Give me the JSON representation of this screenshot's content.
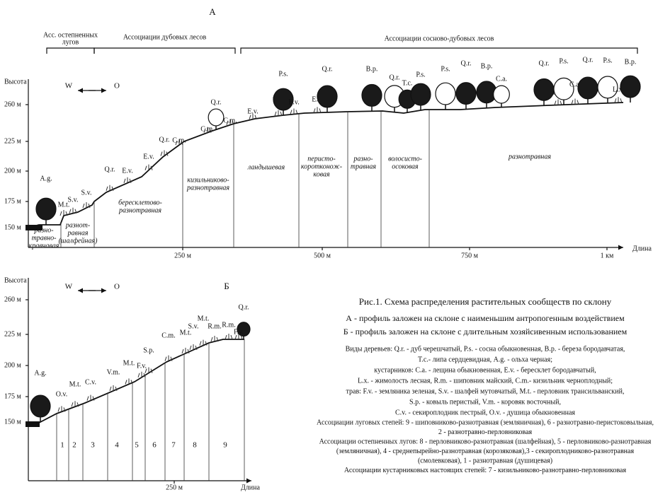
{
  "panel_a": {
    "label": "А",
    "y_axis_title": "Высота",
    "x_axis_title": "Длина",
    "yticks": [
      "150 м",
      "175 м",
      "200 м",
      "225 м",
      "260 м"
    ],
    "xticks": [
      "250 м",
      "500 м",
      "750 м",
      "1 км"
    ],
    "west": "W",
    "east": "O",
    "brackets": [
      [
        "Асс. остепненных",
        "лугов"
      ],
      [
        "Ассоциации дубовых лесов"
      ],
      [
        "Ассоциации сосново-дубовых лесов"
      ]
    ],
    "zones": [
      [
        "разно-",
        "травно-",
        "кравчавая"
      ],
      [
        "разнот-",
        "равная",
        "(шалфейная)"
      ],
      [
        "бересклетово-",
        "разнотравная"
      ],
      [
        "кизильниково-",
        "разнотравная"
      ],
      [
        "ландышевая"
      ],
      [
        "перисто-",
        "коротконож-",
        "ковая"
      ],
      [
        "разно-",
        "травная"
      ],
      [
        "волосисто-",
        "осоковая"
      ],
      [
        "разнотравная"
      ]
    ],
    "plant_labels": [
      "A.g.",
      "M.t.",
      "S.v.",
      "S.v.",
      "Q.r.",
      "E.v.",
      "E.v.",
      "Q.r.",
      "C.m.",
      "C.m.",
      "Q.r.",
      "C.m.",
      "E.v.",
      "C.a.",
      "P.s.",
      "E.v.",
      "E.v.",
      "Q.r.",
      "B.p.",
      "Q.r.",
      "T.c.",
      "P.s.",
      "P.s.",
      "Q.r.",
      "B.p.",
      "C.a.",
      "Q.r.",
      "E.v.",
      "P.s.",
      "C.a.",
      "Q.r.",
      "P.s.",
      "L.x.",
      "B.p."
    ]
  },
  "panel_b": {
    "label": "Б",
    "y_axis_title": "Высота",
    "x_axis_title": "Длина",
    "yticks": [
      "150 м",
      "175 м",
      "200 м",
      "225 м",
      "260 м"
    ],
    "xticks": [
      "250 м"
    ],
    "west": "W",
    "east": "O",
    "zones": [
      "1",
      "2",
      "3",
      "4",
      "5",
      "6",
      "7",
      "8",
      "9"
    ],
    "plant_labels": [
      "A.g.",
      "O.v.",
      "M.t.",
      "C.v.",
      "V.m.",
      "M.t.",
      "F.v.",
      "S.p.",
      "C.m.",
      "M.t.",
      "S.v.",
      "M.t.",
      "R.m.",
      "R.m.",
      "Q.r.",
      "F.v."
    ]
  },
  "caption": {
    "title": "Рис.1. Схема распределения растительных сообществ по склону",
    "profiles": [
      "А - профиль заложен на склоне с наименьшим антропогенным воздействием",
      "Б - профиль заложен на склоне с длительным хозяйсивенным использованием"
    ],
    "species": [
      "Виды деревьев: Q.r. - дуб черешчатый, P.s. - сосна обыкновенная, B.p. - береза бородавчатая,",
      "T.c.- липа сердцевидная, A.g. - ольха черная;",
      "кустарников: C.a. - лещина обыкновенная, E.v. - бересклет бородавчатый,",
      "L.x. - жимолость лесная, R.m. - шиповник майский, C.m.- кизильник черноплодный;",
      "трав:  F.v. - земляника зеленая, S.v. - шалфей мутовчатый, M.t. - перловник трансильванский,",
      "S.p. - ковыль перистый, V.m. -  коровяк восточный,",
      "C.v. - секироплодник  пестрый, O.v. - душица обыкновенная"
    ],
    "associations": [
      "Ассоциации луговых степей: 9 - шиповниково-разнотравная (земляничная), 6 - разнотравно-перистоковыльная,",
      "2 - разнотравно-перловниковая",
      "Ассоциации остепненных лугов: 8 - перловниково-разнотравная (шалфейная), 5 - перловниково-разнотравная",
      "(земляничная), 4 - среднепырейно-разнотравная (корозяковая),3 - секироплодниково-разнотравная",
      "(смолевковая), 1 - разнотравная (душицевая)",
      "Ассоциации кустарниковых настоящих степей: 7 - кизильниково-разнотравно-перловниковая"
    ]
  }
}
